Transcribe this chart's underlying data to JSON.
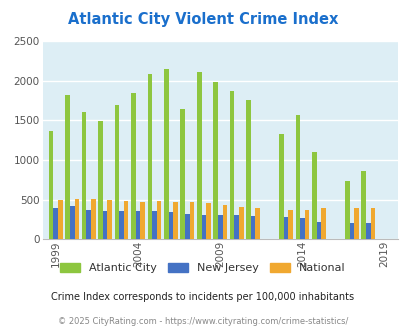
{
  "title": "Atlantic City Violent Crime Index",
  "title_color": "#1a6fcc",
  "ac_vals": [
    1370,
    1820,
    1610,
    1490,
    1700,
    1850,
    2090,
    2150,
    1650,
    2110,
    1980,
    1870,
    1760,
    1330,
    1570,
    1100,
    730,
    860
  ],
  "nj_vals": [
    390,
    420,
    370,
    360,
    355,
    360,
    355,
    345,
    320,
    310,
    305,
    305,
    290,
    275,
    265,
    220,
    205,
    205
  ],
  "nat_vals": [
    500,
    510,
    505,
    500,
    480,
    465,
    480,
    470,
    465,
    455,
    435,
    405,
    390,
    370,
    375,
    400,
    400,
    395
  ],
  "years": [
    1999,
    2000,
    2001,
    2002,
    2003,
    2004,
    2005,
    2006,
    2007,
    2008,
    2009,
    2010,
    2011,
    2013,
    2014,
    2015,
    2017,
    2018
  ],
  "ac_color": "#8dc63f",
  "nj_color": "#4472c4",
  "nat_color": "#f0a830",
  "bg_color": "#ddeef5",
  "ylim": [
    0,
    2500
  ],
  "yticks": [
    0,
    500,
    1000,
    1500,
    2000,
    2500
  ],
  "xtick_years": [
    1999,
    2004,
    2009,
    2014,
    2019
  ],
  "xlim_min": 1998.2,
  "xlim_max": 2019.8,
  "bar_width": 0.28,
  "subtitle": "Crime Index corresponds to incidents per 100,000 inhabitants",
  "footer": "© 2025 CityRating.com - https://www.cityrating.com/crime-statistics/",
  "legend_labels": [
    "Atlantic City",
    "New Jersey",
    "National"
  ]
}
